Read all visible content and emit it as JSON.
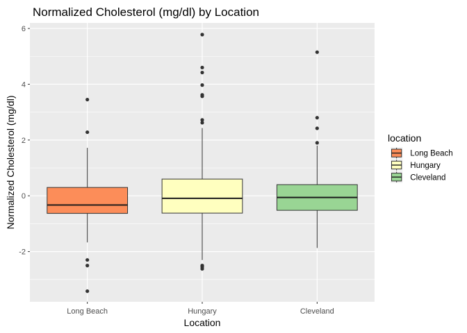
{
  "chart_data": {
    "type": "boxplot",
    "title": "Normalized Cholesterol (mg/dl) by Location",
    "xlabel": "Location",
    "ylabel": "Normalized Cholesterol (mg/dl)",
    "ylim": [
      -3.8,
      6.2
    ],
    "yticks": [
      -2,
      0,
      2,
      4,
      6
    ],
    "categories": [
      "Long Beach",
      "Hungary",
      "Cleveland"
    ],
    "grid": true,
    "legend": {
      "title": "location",
      "position": "right",
      "entries": [
        "Long Beach",
        "Hungary",
        "Cleveland"
      ]
    },
    "series": [
      {
        "name": "Long Beach",
        "color": "#fc8d59",
        "whisker_low": -1.67,
        "q1": -0.63,
        "median": -0.33,
        "q3": 0.3,
        "whisker_high": 1.72,
        "outliers": [
          3.45,
          2.28,
          -2.3,
          -2.5,
          -3.42
        ]
      },
      {
        "name": "Hungary",
        "color": "#ffffbf",
        "whisker_low": -2.3,
        "q1": -0.62,
        "median": -0.09,
        "q3": 0.6,
        "whisker_high": 2.43,
        "outliers": [
          5.78,
          4.6,
          4.42,
          3.97,
          3.62,
          3.57,
          2.72,
          2.62,
          -2.5,
          -2.55,
          -2.62
        ]
      },
      {
        "name": "Cleveland",
        "color": "#99d594",
        "whisker_low": -1.87,
        "q1": -0.52,
        "median": -0.06,
        "q3": 0.4,
        "whisker_high": 1.8,
        "outliers": [
          5.15,
          2.8,
          2.42,
          1.9
        ]
      }
    ]
  }
}
